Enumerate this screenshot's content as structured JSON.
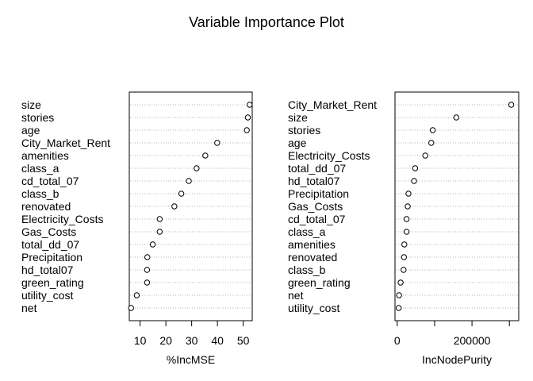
{
  "title": "Variable Importance Plot",
  "chart_data": [
    {
      "type": "scatter",
      "style": "dotchart",
      "xlabel": "%IncMSE",
      "xlim": [
        5.8,
        53.5
      ],
      "xticks": [
        10,
        20,
        30,
        40,
        50
      ],
      "xtick_labels": [
        "10",
        "20",
        "30",
        "40",
        "50"
      ],
      "categories": [
        "size",
        "stories",
        "age",
        "City_Market_Rent",
        "amenities",
        "class_a",
        "cd_total_07",
        "class_b",
        "renovated",
        "Electricity_Costs",
        "Gas_Costs",
        "total_dd_07",
        "Precipitation",
        "hd_total07",
        "green_rating",
        "utility_cost",
        "net"
      ],
      "values": [
        52.5,
        51.8,
        51.4,
        39.9,
        35.3,
        31.9,
        28.9,
        26.0,
        23.3,
        17.6,
        17.6,
        14.9,
        12.8,
        12.7,
        12.7,
        8.7,
        6.5
      ]
    },
    {
      "type": "scatter",
      "style": "dotchart",
      "xlabel": "IncNodePurity",
      "xlim": [
        -6000,
        325000
      ],
      "xticks": [
        0,
        100000,
        200000,
        300000
      ],
      "xtick_labels": [
        "0",
        "",
        "200000",
        ""
      ],
      "categories": [
        "City_Market_Rent",
        "size",
        "stories",
        "age",
        "Electricity_Costs",
        "total_dd_07",
        "hd_total07",
        "Precipitation",
        "Gas_Costs",
        "cd_total_07",
        "class_a",
        "amenities",
        "renovated",
        "class_b",
        "green_rating",
        "net",
        "utility_cost"
      ],
      "values": [
        305000,
        158000,
        95000,
        91000,
        75000,
        48000,
        45000,
        30000,
        28000,
        25000,
        25000,
        19000,
        18000,
        17000,
        9000,
        5000,
        4000
      ]
    }
  ]
}
